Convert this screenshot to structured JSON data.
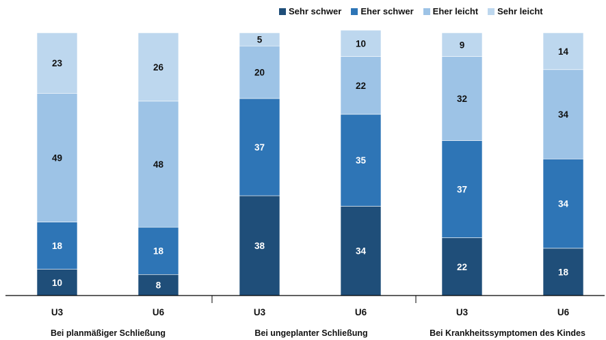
{
  "chart_data": {
    "type": "bar",
    "stacked": true,
    "legend_position": "top-right",
    "grid": false,
    "ylim": [
      0,
      100
    ],
    "categories": [
      "U3",
      "U6",
      "U3",
      "U6",
      "U3",
      "U6"
    ],
    "groups": [
      "Bei planmäßiger Schließung",
      "Bei ungeplanter Schließung",
      "Bei Krankheitssymptomen des Kindes"
    ],
    "series": [
      {
        "name": "Sehr schwer",
        "color": "#1f4e79",
        "label_color": "#ffffff",
        "values": [
          10,
          8,
          38,
          34,
          22,
          18
        ]
      },
      {
        "name": "Eher schwer",
        "color": "#2e75b6",
        "label_color": "#ffffff",
        "values": [
          18,
          18,
          37,
          35,
          37,
          34
        ]
      },
      {
        "name": "Eher leicht",
        "color": "#9dc3e6",
        "label_color": "#111111",
        "values": [
          49,
          48,
          20,
          22,
          32,
          34
        ]
      },
      {
        "name": "Sehr leicht",
        "color": "#bdd7ee",
        "label_color": "#111111",
        "values": [
          23,
          26,
          5,
          10,
          9,
          14
        ]
      }
    ]
  }
}
